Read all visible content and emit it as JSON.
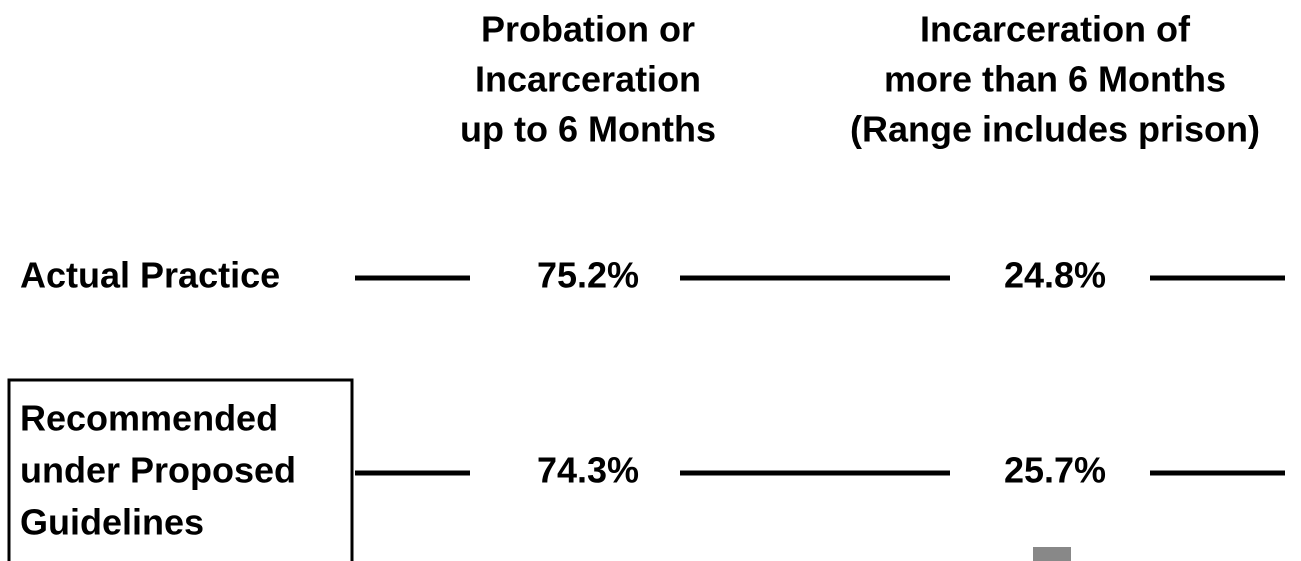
{
  "columns": [
    {
      "lines": [
        "Probation or",
        "Incarceration",
        "up to 6 Months"
      ]
    },
    {
      "lines": [
        "Incarceration of",
        "more than 6 Months",
        "(Range includes prison)"
      ]
    }
  ],
  "rows": [
    {
      "label": [
        "Actual Practice"
      ],
      "values": [
        "75.2%",
        "24.8%"
      ]
    },
    {
      "label": [
        "Recommended",
        "under Proposed",
        "Guidelines"
      ],
      "values": [
        "74.3%",
        "25.7%"
      ]
    }
  ]
}
